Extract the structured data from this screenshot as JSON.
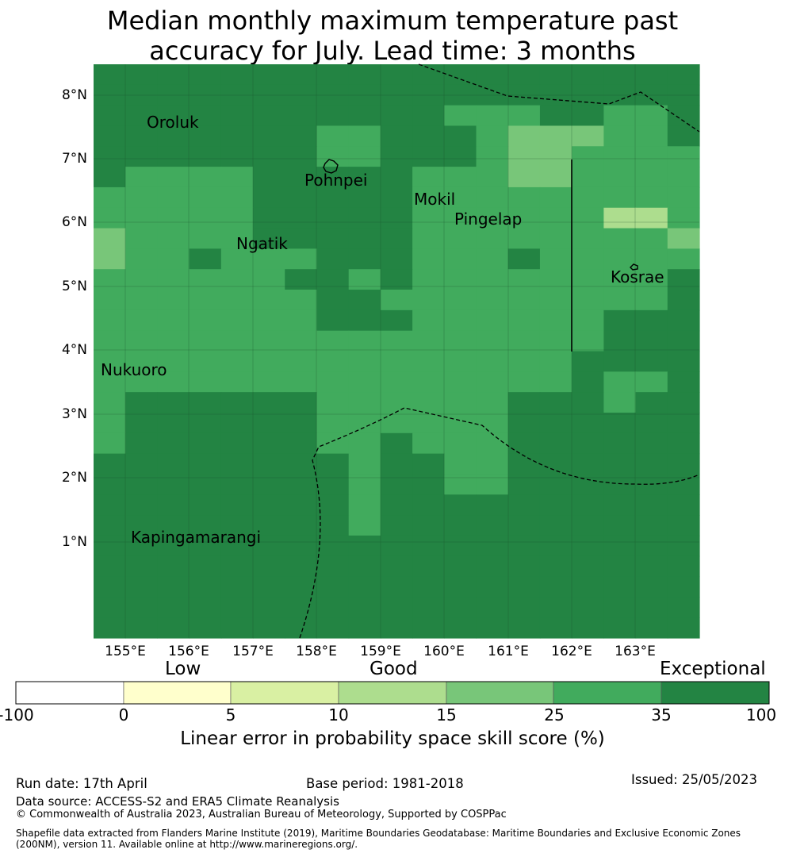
{
  "title_line1": "Median monthly maximum temperature past",
  "title_line2": "accuracy for July. Lead time: 3 months",
  "map": {
    "lat_labels": [
      "8°N",
      "7°N",
      "6°N",
      "5°N",
      "4°N",
      "3°N",
      "2°N",
      "1°N"
    ],
    "lon_labels": [
      "155°E",
      "156°E",
      "157°E",
      "158°E",
      "159°E",
      "160°E",
      "161°E",
      "162°E",
      "163°E"
    ],
    "places": [
      "Oroluk",
      "Pohnpei",
      "Mokil",
      "Pingelap",
      "Ngatik",
      "Kosrae",
      "Nukuoro",
      "Kapingamarangi"
    ],
    "grid_rows_north_to_south": [
      "6666666666666666666",
      "6666666666666666666",
      "6666666666655566556",
      "6666666556665444556",
      "6666666556665445555",
      "6555566666555445555",
      "5555566666555555555",
      "5555566666555555335",
      "4555566666555555554",
      "4556555666555655555",
      "5555556656555555556",
      "5555555665555555556",
      "5555555666555555666",
      "5555555555555555666",
      "5555555555555556666",
      "5555555555555556556",
      "5666666555555666566",
      "5666666555555666666",
      "5666666556555666666",
      "6666666656655666666",
      "6666666656655666666",
      "6666666656666666666",
      "6666666656666666666",
      "6666666666666666666",
      "6666666666666666666",
      "6666666666666666666",
      "6666666666666666666",
      "6666666666666666666"
    ],
    "class_colors": {
      "0": "#ffffff",
      "1": "#ffffcc",
      "2": "#d9f0a3",
      "3": "#addd8e",
      "4": "#78c679",
      "5": "#41ab5d",
      "6": "#238443"
    }
  },
  "colorbar": {
    "top_labels": [
      "Low",
      "Good",
      "Exceptional"
    ],
    "ticks": [
      "-100",
      "0",
      "5",
      "10",
      "15",
      "25",
      "35",
      "100"
    ],
    "colors": [
      "#ffffff",
      "#ffffcc",
      "#d9f0a3",
      "#addd8e",
      "#78c679",
      "#41ab5d",
      "#238443"
    ],
    "label": "Linear error in probability space skill score (%)"
  },
  "footer": {
    "run_date": "Run date: 17th April",
    "base_period": "Base period: 1981-2018",
    "issued": "Issued: 25/05/2023",
    "data_source": "Data source: ACCESS-S2 and ERA5 Climate Reanalysis",
    "copyright": "© Commonwealth of Australia 2023, Australian Bureau of Meteorology, Supported by COSPPac",
    "shapefile_line1": "Shapefile data extracted from Flanders Marine Institute (2019), Maritime Boundaries Geodatabase: Maritime Boundaries and Exclusive Economic Zones",
    "shapefile_line2": "(200NM), version 11. Available online at http://www.marineregions.org/."
  }
}
